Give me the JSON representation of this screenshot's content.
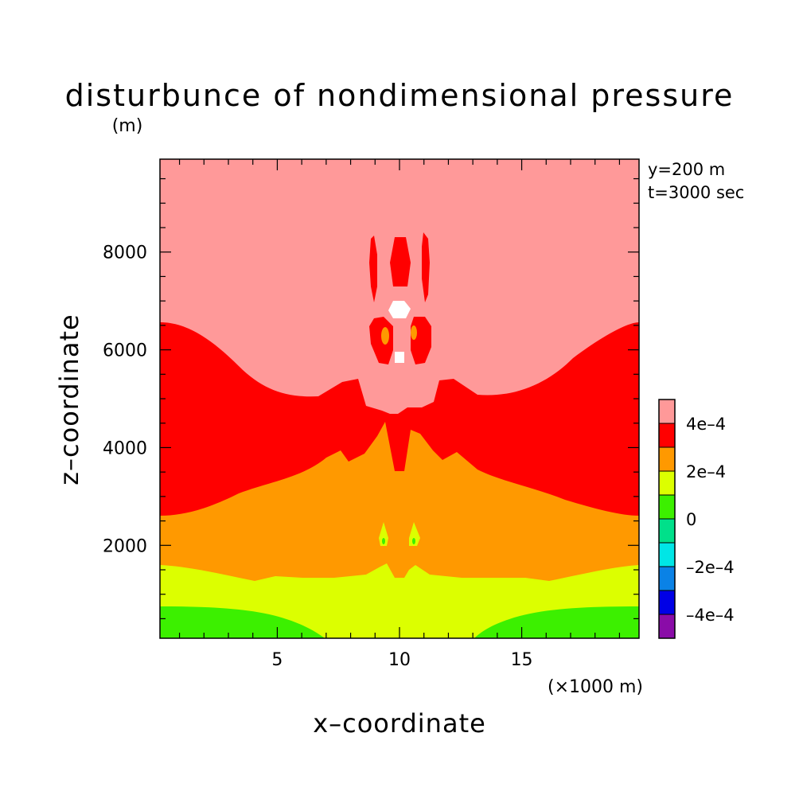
{
  "chart_data": {
    "type": "heatmap",
    "subtype": "filled-contour",
    "title": "disturbunce of nondimensional pressure",
    "y_unit_label": "(m)",
    "x_unit_label": "(×1000 m)",
    "xlabel": "x–coordinate",
    "ylabel": "z–coordinate",
    "annotations": [
      "y=200 m",
      "t=3000 sec"
    ],
    "xlim": [
      0.2,
      19.8
    ],
    "ylim": [
      100,
      9900
    ],
    "x_ticks": [
      5,
      10,
      15
    ],
    "x_tick_labels": [
      "5",
      "10",
      "15"
    ],
    "y_ticks": [
      2000,
      4000,
      6000,
      8000
    ],
    "y_tick_labels": [
      "2000",
      "4000",
      "6000",
      "8000"
    ],
    "colorbar": {
      "levels": [
        {
          "color": "#8a0ca8"
        },
        {
          "color": "#0000e6"
        },
        {
          "color": "#0a82e6"
        },
        {
          "color": "#00e6e6"
        },
        {
          "color": "#00e08a"
        },
        {
          "color": "#3cf000"
        },
        {
          "color": "#dcff00"
        },
        {
          "color": "#ff9900"
        },
        {
          "color": "#ff0000"
        },
        {
          "color": "#ff9999"
        }
      ],
      "tick_labels": [
        "4e–4",
        "2e–4",
        "0",
        "–2e–4",
        "–4e–4"
      ]
    },
    "fields": {
      "background": {
        "color": "#ff9999"
      },
      "band_red": {
        "color": "#ff0000",
        "left_top": 6600,
        "center_top": 4800,
        "note": "red band above orange, bulging down at center to ~3500"
      },
      "band_orange": {
        "color": "#ff9900",
        "left_top": 2600,
        "center_top": 4550
      },
      "band_yellow": {
        "color": "#dcff00",
        "left_top": 1600,
        "center_top": 1400
      },
      "band_green": {
        "color": "#3cf000",
        "left_top": 700,
        "extent_x": [
          0.2,
          7.0,
          13.0,
          19.8
        ]
      },
      "white_cells": {
        "color": "#ffffff"
      }
    }
  }
}
